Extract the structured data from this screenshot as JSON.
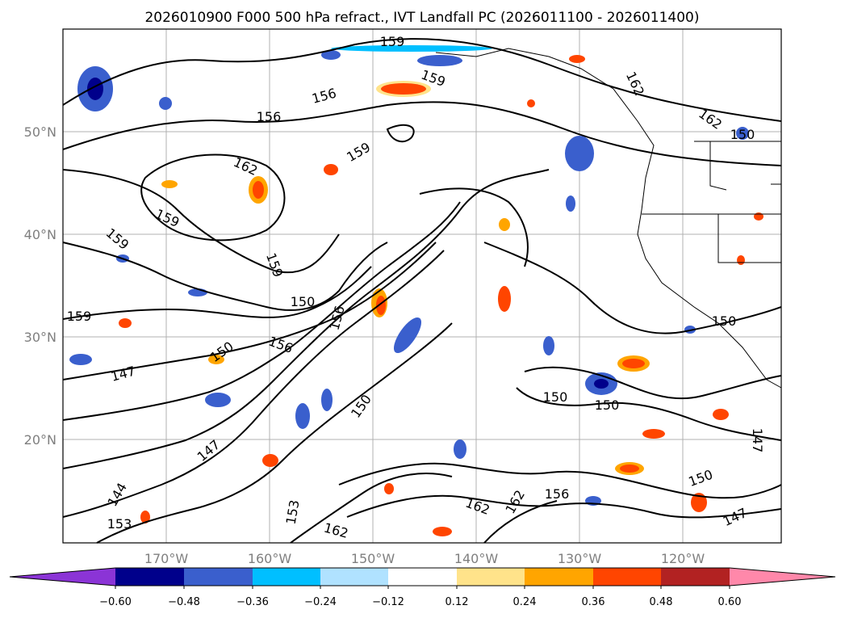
{
  "title": "2026010900 F000 500 hPa refract., IVT Landfall PC (2026011100 - 2026011400)",
  "map": {
    "lat_labels": [
      "50°N",
      "40°N",
      "30°N",
      "20°N"
    ],
    "lon_labels": [
      "170°W",
      "160°W",
      "150°W",
      "140°W",
      "130°W",
      "120°W"
    ],
    "grid": true
  },
  "contour_labels": [
    "159",
    "159",
    "156",
    "156",
    "159",
    "162",
    "162",
    "162",
    "159",
    "159",
    "159",
    "159",
    "150",
    "156",
    "150",
    "156",
    "150",
    "147",
    "147",
    "150",
    "150",
    "150",
    "144",
    "147",
    "153",
    "162",
    "162",
    "162",
    "156",
    "150",
    "147",
    "150",
    "153"
  ],
  "colorbar": {
    "ticks": [
      "−0.60",
      "−0.48",
      "−0.36",
      "−0.24",
      "−0.12",
      "0.12",
      "0.24",
      "0.36",
      "0.48",
      "0.60"
    ],
    "colors": [
      "#8b34d6",
      "#00008b",
      "#3a5fcd",
      "#00bfff",
      "#b0e2ff",
      "#ffffff",
      "#ffe38a",
      "#ffa500",
      "#ff4500",
      "#b22222",
      "#ff88aa"
    ],
    "extend": "both"
  }
}
